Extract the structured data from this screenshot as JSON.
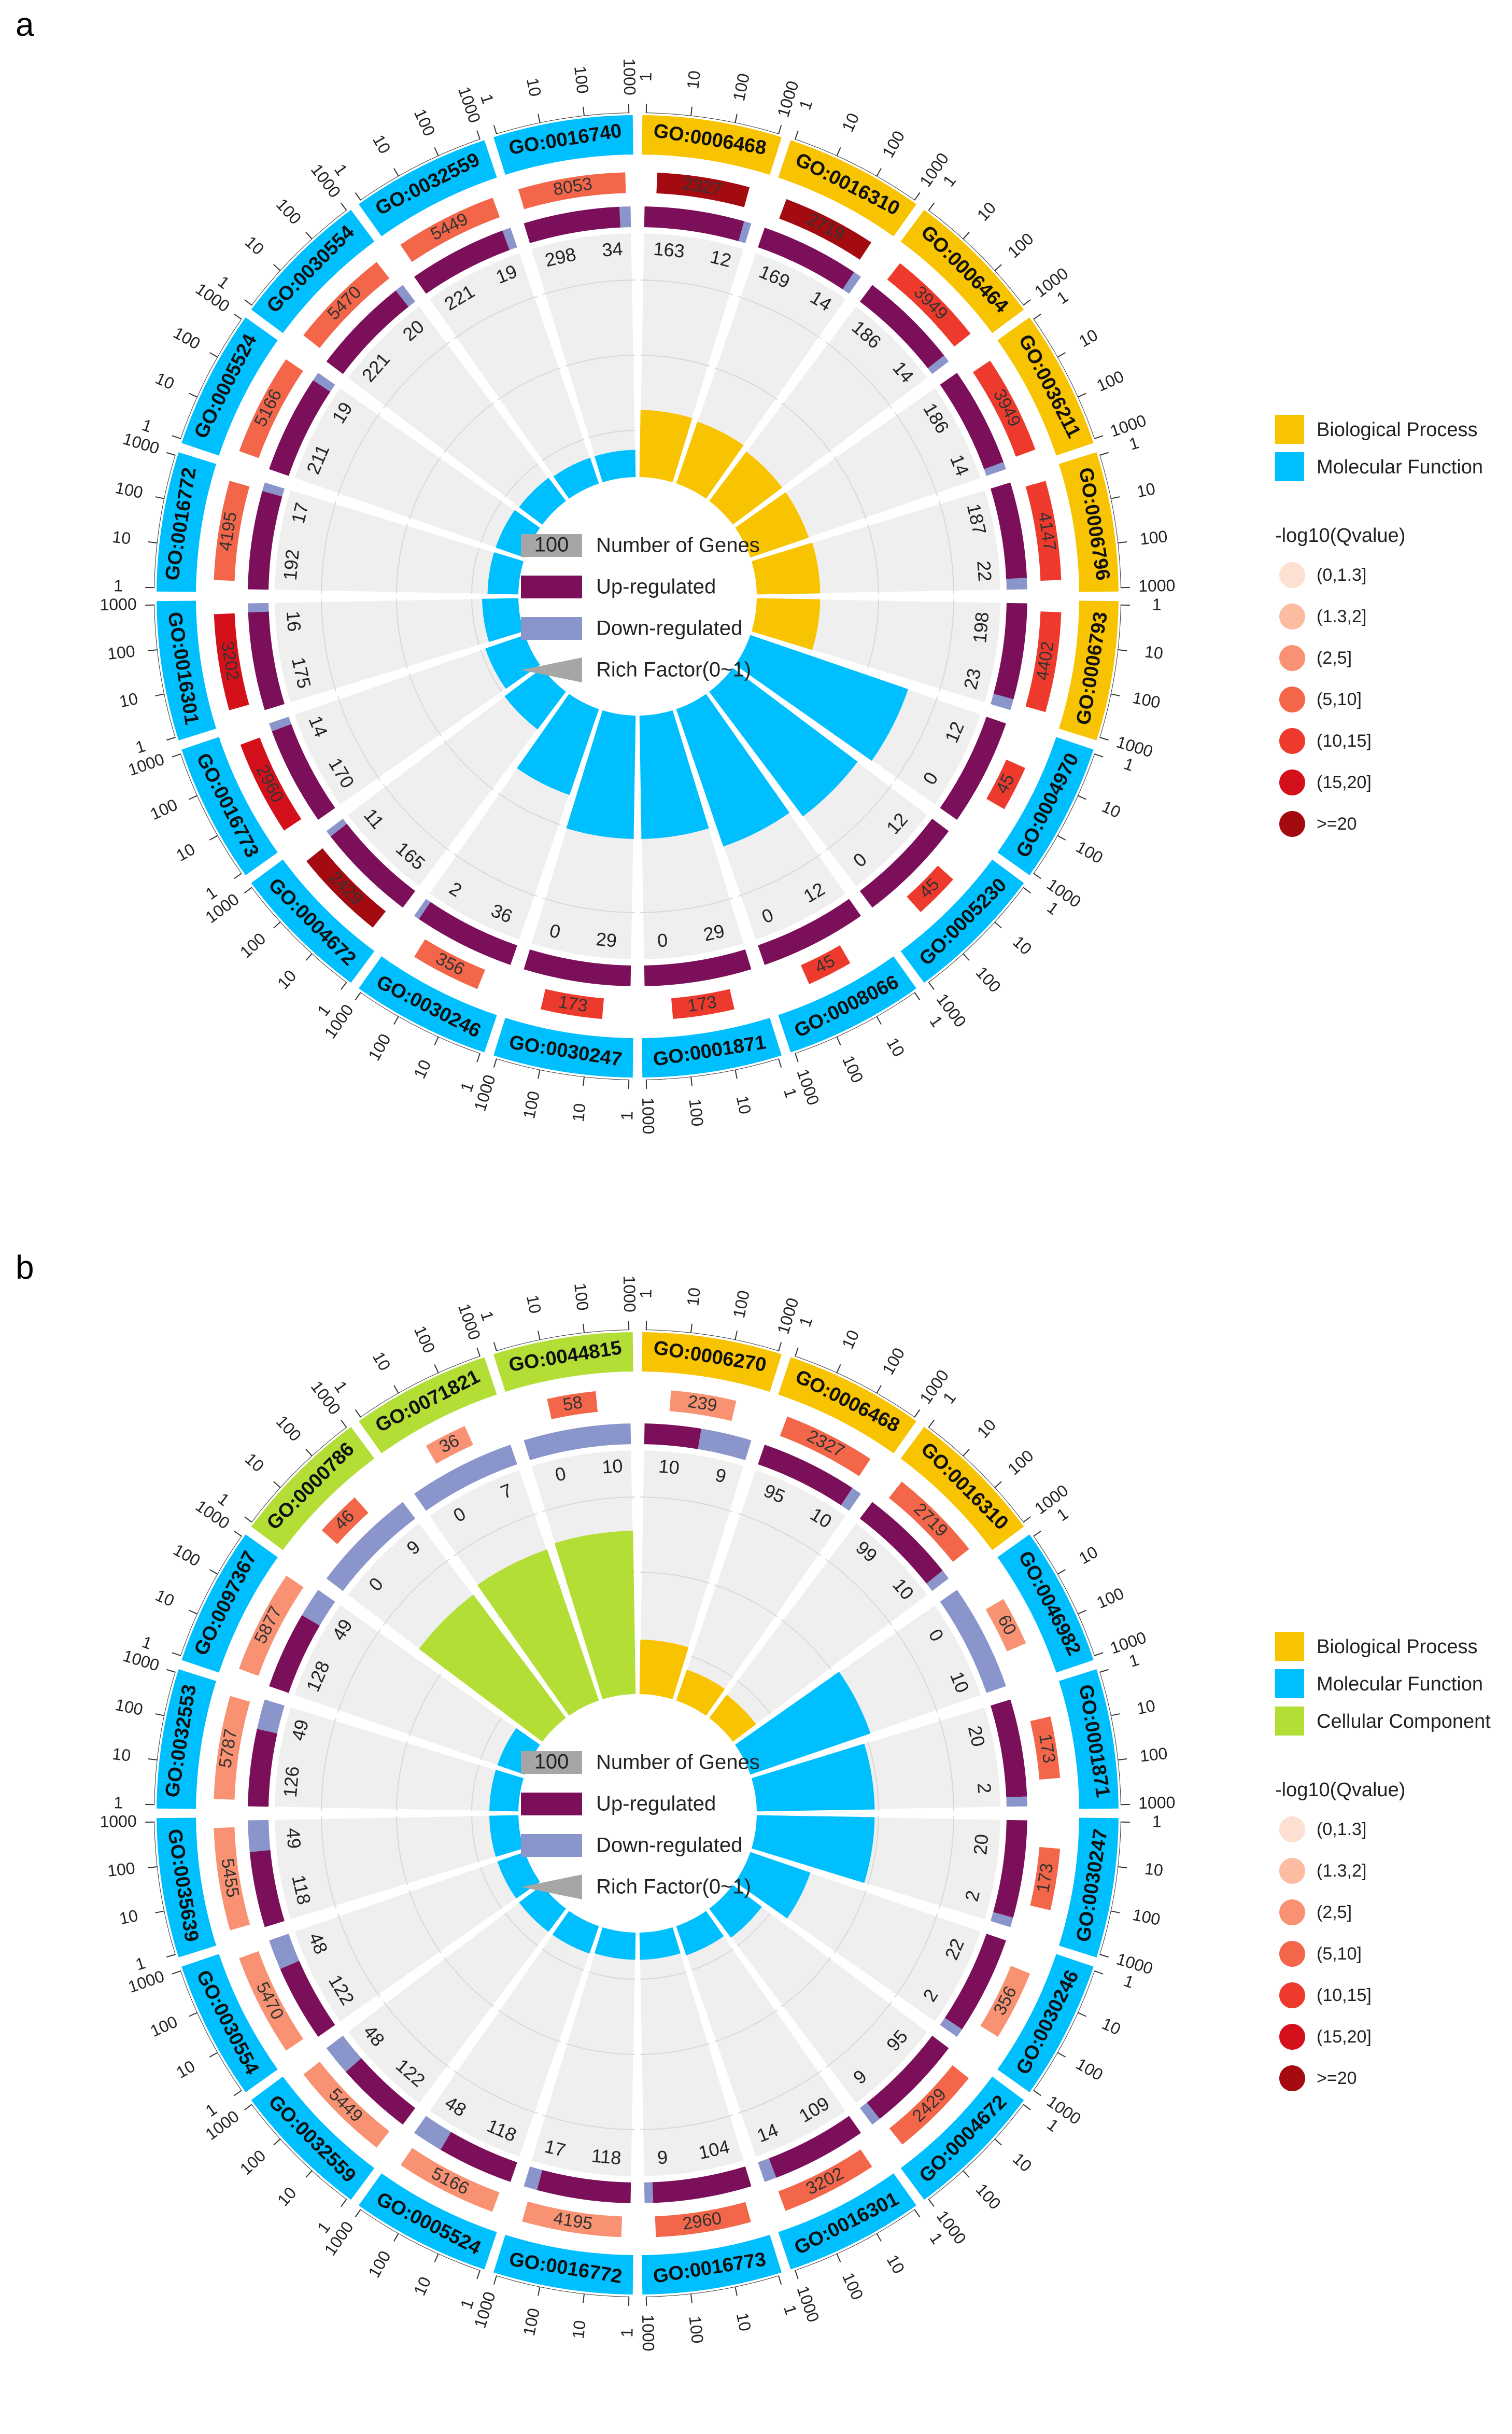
{
  "panel_labels": [
    "a",
    "b"
  ],
  "legend": {
    "category_title": "",
    "qvalue_title": "-log10(Qvalue)",
    "qvalue_bins": [
      {
        "label": "(0,1.3]",
        "color": "#fde0d2"
      },
      {
        "label": "(1.3,2]",
        "color": "#fcbca2"
      },
      {
        "label": "(2,5]",
        "color": "#f89272"
      },
      {
        "label": "(5,10]",
        "color": "#f3664a"
      },
      {
        "label": "(10,15]",
        "color": "#ee3a2d"
      },
      {
        "label": "(15,20]",
        "color": "#d4111a"
      },
      {
        "label": ">=20",
        "color": "#a30b11"
      }
    ]
  },
  "center_legend": {
    "number_of_genes": "Number of Genes",
    "number_of_genes_box": "100",
    "up_regulated": "Up-regulated",
    "down_regulated": "Down-regulated",
    "rich_factor": "Rich Factor(0~1)"
  },
  "colors": {
    "biological_process": "#f8c300",
    "molecular_function": "#00bfff",
    "cellular_component": "#b2de36",
    "up": "#7b0f5a",
    "down": "#8a95cc",
    "grey_box": "#a6a6a6",
    "track_bg": "#efefef"
  },
  "chart_data": [
    {
      "type": "circular-go-enrichment",
      "panel": "a",
      "categories_legend": [
        {
          "name": "Biological Process",
          "color": "#f8c300"
        },
        {
          "name": "Molecular Function",
          "color": "#00bfff"
        }
      ],
      "scale_ticks": [
        "1",
        "10",
        "100",
        "1000"
      ],
      "terms": [
        {
          "id": "GO:0006468",
          "category": "Biological Process",
          "total": 2327,
          "qbin": 6,
          "up": 163,
          "down": 12,
          "rich": 0.37
        },
        {
          "id": "GO:0016310",
          "category": "Biological Process",
          "total": 2719,
          "qbin": 6,
          "up": 169,
          "down": 14,
          "rich": 0.36
        },
        {
          "id": "GO:0006464",
          "category": "Biological Process",
          "total": 3949,
          "qbin": 4,
          "up": 186,
          "down": 14,
          "rich": 0.34
        },
        {
          "id": "GO:0036211",
          "category": "Biological Process",
          "total": 3949,
          "qbin": 4,
          "up": 186,
          "down": 14,
          "rich": 0.34
        },
        {
          "id": "GO:0006796",
          "category": "Biological Process",
          "total": 4147,
          "qbin": 4,
          "up": 187,
          "down": 22,
          "rich": 0.35
        },
        {
          "id": "GO:0006793",
          "category": "Biological Process",
          "total": 4402,
          "qbin": 4,
          "up": 198,
          "down": 23,
          "rich": 0.35
        },
        {
          "id": "GO:0004970",
          "category": "Molecular Function",
          "total": 45,
          "qbin": 4,
          "up": 12,
          "down": 0,
          "rich": 0.92
        },
        {
          "id": "GO:0005230",
          "category": "Molecular Function",
          "total": 45,
          "qbin": 4,
          "up": 12,
          "down": 0,
          "rich": 0.86
        },
        {
          "id": "GO:0008066",
          "category": "Molecular Function",
          "total": 45,
          "qbin": 4,
          "up": 12,
          "down": 0,
          "rich": 0.8
        },
        {
          "id": "GO:0001871",
          "category": "Molecular Function",
          "total": 173,
          "qbin": 4,
          "up": 29,
          "down": 0,
          "rich": 0.68
        },
        {
          "id": "GO:0030247",
          "category": "Molecular Function",
          "total": 173,
          "qbin": 4,
          "up": 29,
          "down": 0,
          "rich": 0.68
        },
        {
          "id": "GO:0030246",
          "category": "Molecular Function",
          "total": 356,
          "qbin": 3,
          "up": 36,
          "down": 2,
          "rich": 0.5
        },
        {
          "id": "GO:0004672",
          "category": "Molecular Function",
          "total": 2429,
          "qbin": 6,
          "up": 165,
          "down": 11,
          "rich": 0.26
        },
        {
          "id": "GO:0016773",
          "category": "Molecular Function",
          "total": 2960,
          "qbin": 5,
          "up": 170,
          "down": 14,
          "rich": 0.23
        },
        {
          "id": "GO:0016301",
          "category": "Molecular Function",
          "total": 3202,
          "qbin": 5,
          "up": 175,
          "down": 16,
          "rich": 0.2
        },
        {
          "id": "GO:0016772",
          "category": "Molecular Function",
          "total": 4195,
          "qbin": 3,
          "up": 192,
          "down": 17,
          "rich": 0.17
        },
        {
          "id": "GO:0005524",
          "category": "Molecular Function",
          "total": 5166,
          "qbin": 3,
          "up": 211,
          "down": 19,
          "rich": 0.17
        },
        {
          "id": "GO:0030554",
          "category": "Molecular Function",
          "total": 5470,
          "qbin": 3,
          "up": 221,
          "down": 20,
          "rich": 0.16
        },
        {
          "id": "GO:0032559",
          "category": "Molecular Function",
          "total": 5449,
          "qbin": 3,
          "up": 221,
          "down": 19,
          "rich": 0.15
        },
        {
          "id": "GO:0016740",
          "category": "Molecular Function",
          "total": 8053,
          "qbin": 3,
          "up": 298,
          "down": 34,
          "rich": 0.15
        }
      ]
    },
    {
      "type": "circular-go-enrichment",
      "panel": "b",
      "categories_legend": [
        {
          "name": "Biological Process",
          "color": "#f8c300"
        },
        {
          "name": "Molecular Function",
          "color": "#00bfff"
        },
        {
          "name": "Cellular Component",
          "color": "#b2de36"
        }
      ],
      "scale_ticks": [
        "1",
        "10",
        "100",
        "1000"
      ],
      "terms": [
        {
          "id": "GO:0006270",
          "category": "Biological Process",
          "total": 239,
          "qbin": 2,
          "up": 10,
          "down": 9,
          "rich": 0.3
        },
        {
          "id": "GO:0006468",
          "category": "Biological Process",
          "total": 2327,
          "qbin": 3,
          "up": 95,
          "down": 10,
          "rich": 0.18
        },
        {
          "id": "GO:0016310",
          "category": "Biological Process",
          "total": 2719,
          "qbin": 3,
          "up": 99,
          "down": 10,
          "rich": 0.16
        },
        {
          "id": "GO:0046982",
          "category": "Molecular Function",
          "total": 60,
          "qbin": 2,
          "up": 0,
          "down": 10,
          "rich": 0.7
        },
        {
          "id": "GO:0001871",
          "category": "Molecular Function",
          "total": 173,
          "qbin": 3,
          "up": 20,
          "down": 2,
          "rich": 0.65
        },
        {
          "id": "GO:0030247",
          "category": "Molecular Function",
          "total": 173,
          "qbin": 3,
          "up": 20,
          "down": 2,
          "rich": 0.65
        },
        {
          "id": "GO:0030246",
          "category": "Molecular Function",
          "total": 356,
          "qbin": 2,
          "up": 22,
          "down": 2,
          "rich": 0.35
        },
        {
          "id": "GO:0004672",
          "category": "Molecular Function",
          "total": 2429,
          "qbin": 3,
          "up": 95,
          "down": 9,
          "rich": 0.2
        },
        {
          "id": "GO:0016301",
          "category": "Molecular Function",
          "total": 3202,
          "qbin": 3,
          "up": 109,
          "down": 14,
          "rich": 0.17
        },
        {
          "id": "GO:0016773",
          "category": "Molecular Function",
          "total": 2960,
          "qbin": 3,
          "up": 104,
          "down": 9,
          "rich": 0.15
        },
        {
          "id": "GO:0016772",
          "category": "Molecular Function",
          "total": 4195,
          "qbin": 2,
          "up": 118,
          "down": 17,
          "rich": 0.15
        },
        {
          "id": "GO:0005524",
          "category": "Molecular Function",
          "total": 5166,
          "qbin": 2,
          "up": 118,
          "down": 48,
          "rich": 0.16
        },
        {
          "id": "GO:0032559",
          "category": "Molecular Function",
          "total": 5449,
          "qbin": 2,
          "up": 122,
          "down": 48,
          "rich": 0.16
        },
        {
          "id": "GO:0030554",
          "category": "Molecular Function",
          "total": 5470,
          "qbin": 2,
          "up": 122,
          "down": 48,
          "rich": 0.16
        },
        {
          "id": "GO:0035639",
          "category": "Molecular Function",
          "total": 5455,
          "qbin": 2,
          "up": 118,
          "down": 49,
          "rich": 0.16
        },
        {
          "id": "GO:0032553",
          "category": "Molecular Function",
          "total": 5787,
          "qbin": 2,
          "up": 126,
          "down": 49,
          "rich": 0.16
        },
        {
          "id": "GO:0097367",
          "category": "Molecular Function",
          "total": 5877,
          "qbin": 2,
          "up": 128,
          "down": 49,
          "rich": 0.16
        },
        {
          "id": "GO:0000786",
          "category": "Cellular Component",
          "total": 46,
          "qbin": 3,
          "up": 0,
          "down": 9,
          "rich": 0.85
        },
        {
          "id": "GO:0071821",
          "category": "Cellular Component",
          "total": 36,
          "qbin": 2,
          "up": 0,
          "down": 7,
          "rich": 0.88
        },
        {
          "id": "GO:0044815",
          "category": "Cellular Component",
          "total": 58,
          "qbin": 3,
          "up": 0,
          "down": 10,
          "rich": 0.9
        }
      ]
    }
  ]
}
